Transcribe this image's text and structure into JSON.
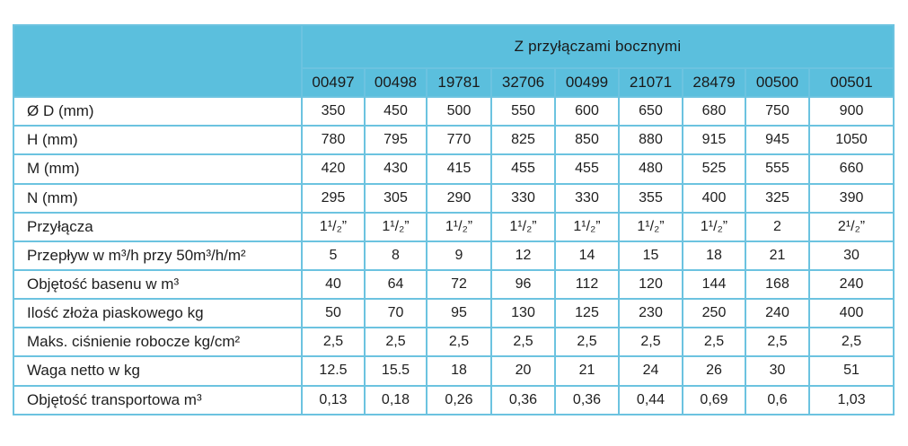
{
  "table": {
    "group_header": "Z przyłączami bocznymi",
    "codes": [
      "00497",
      "00498",
      "19781",
      "32706",
      "00499",
      "21071",
      "28479",
      "00500",
      "00501"
    ],
    "rows": [
      {
        "label": "Ø D (mm)",
        "values": [
          "350",
          "450",
          "500",
          "550",
          "600",
          "650",
          "680",
          "750",
          "900"
        ]
      },
      {
        "label": "H (mm)",
        "values": [
          "780",
          "795",
          "770",
          "825",
          "850",
          "880",
          "915",
          "945",
          "1050"
        ]
      },
      {
        "label": "M (mm)",
        "values": [
          "420",
          "430",
          "415",
          "455",
          "455",
          "480",
          "525",
          "555",
          "660"
        ]
      },
      {
        "label": "N (mm)",
        "values": [
          "295",
          "305",
          "290",
          "330",
          "330",
          "355",
          "400",
          "325",
          "390"
        ]
      },
      {
        "label": "Przyłącza",
        "values": [
          "1¹/₂”",
          "1¹/₂”",
          "1¹/₂”",
          "1¹/₂”",
          "1¹/₂”",
          "1¹/₂”",
          "1¹/₂”",
          "2",
          "2¹/₂”"
        ]
      },
      {
        "label": "Przepływ w m³/h przy 50m³/h/m²",
        "values": [
          "5",
          "8",
          "9",
          "12",
          "14",
          "15",
          "18",
          "21",
          "30"
        ]
      },
      {
        "label": "Objętość basenu w m³",
        "values": [
          "40",
          "64",
          "72",
          "96",
          "112",
          "120",
          "144",
          "168",
          "240"
        ]
      },
      {
        "label": "Ilość złoża piaskowego kg",
        "values": [
          "50",
          "70",
          "95",
          "130",
          "125",
          "230",
          "250",
          "240",
          "400"
        ]
      },
      {
        "label": "Maks. ciśnienie robocze kg/cm²",
        "values": [
          "2,5",
          "2,5",
          "2,5",
          "2,5",
          "2,5",
          "2,5",
          "2,5",
          "2,5",
          "2,5"
        ]
      },
      {
        "label": "Waga netto w kg",
        "values": [
          "12.5",
          "15.5",
          "18",
          "20",
          "21",
          "24",
          "26",
          "30",
          "51"
        ]
      },
      {
        "label": "Objętość transportowa m³",
        "values": [
          "0,13",
          "0,18",
          "0,26",
          "0,36",
          "0,36",
          "0,44",
          "0,69",
          "0,6",
          "1,03"
        ]
      }
    ]
  },
  "colors": {
    "header_bg": "#5bbfdd",
    "border": "#6cc3e0",
    "text": "#1e1e1e"
  }
}
